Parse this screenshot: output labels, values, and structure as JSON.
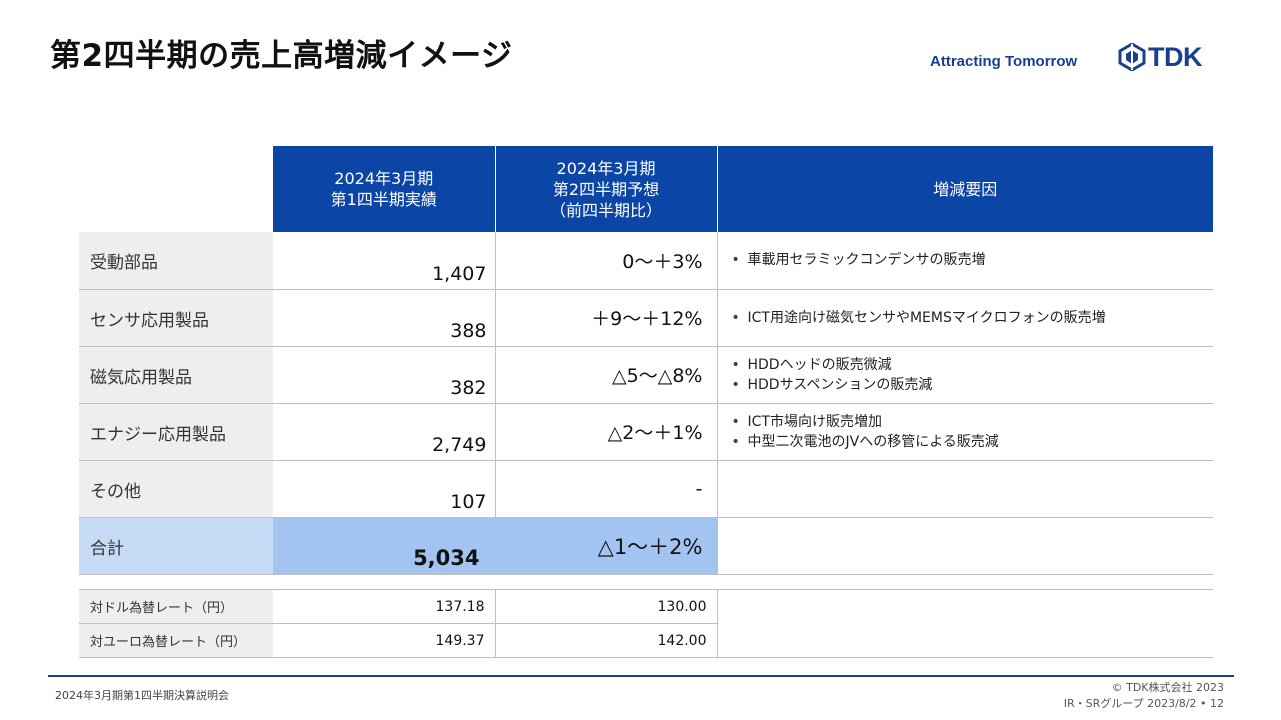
{
  "title": "第2四半期の売上高増減イメージ",
  "tagline": "Attracting Tomorrow",
  "logo_text": "TDK",
  "brand_color": "#1b3f8f",
  "header_color": "#0b46a6",
  "table": {
    "headers": {
      "actual": [
        "2024年3月期",
        "第1四半期実績"
      ],
      "forecast": [
        "2024年3月期",
        "第2四半期予想",
        "（前四半期比）"
      ],
      "reason": "増減要因"
    },
    "rows": [
      {
        "segment": "受動部品",
        "actual": "1,407",
        "forecast": "0〜＋3%",
        "reasons": [
          "車載用セラミックコンデンサの販売増"
        ]
      },
      {
        "segment": "センサ応用製品",
        "actual": "388",
        "forecast": "＋9〜＋12%",
        "reasons": [
          "ICT用途向け磁気センサやMEMSマイクロフォンの販売増"
        ]
      },
      {
        "segment": "磁気応用製品",
        "actual": "382",
        "forecast": "△5〜△8%",
        "reasons": [
          "HDDヘッドの販売微減",
          "HDDサスペンションの販売減"
        ]
      },
      {
        "segment": "エナジー応用製品",
        "actual": "2,749",
        "forecast": "△2〜＋1%",
        "reasons": [
          "ICT市場向け販売増加",
          "中型二次電池のJVへの移管による販売減"
        ]
      },
      {
        "segment": "その他",
        "actual": "107",
        "forecast": "-",
        "reasons": []
      }
    ],
    "total": {
      "segment": "合計",
      "actual": "5,034",
      "forecast": "△1〜＋2%"
    }
  },
  "fx": [
    {
      "label": "対ドル為替レート（円）",
      "actual": "137.18",
      "forecast": "130.00"
    },
    {
      "label": "対ユーロ為替レート（円）",
      "actual": "149.37",
      "forecast": "142.00"
    }
  ],
  "footer": {
    "left": "2024年3月期第1四半期決算説明会",
    "copyright": "© TDK株式会社 2023",
    "group": "IR・SRグループ",
    "date": "2023/8/2",
    "page": "12"
  }
}
